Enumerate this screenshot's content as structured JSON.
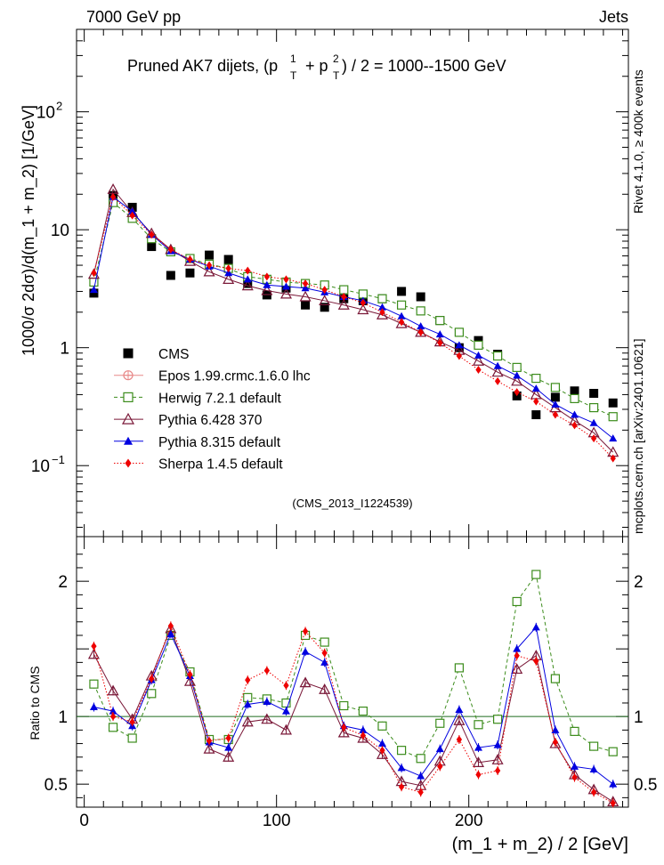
{
  "header": {
    "left": "7000 GeV pp",
    "right": "Jets",
    "title_main": "Pruned AK7 dijets, (p",
    "title_sup1": "1",
    "title_sub1": "T",
    "title_plus": "+ p",
    "title_sup2": "2",
    "title_sub2": "T",
    "title_rest": ") / 2 = 1000--1500 GeV"
  },
  "side": {
    "rivet": "Rivet 4.1.0, ≥ 400k events",
    "mcplots": "mcplots.cern.ch [arXiv:2401.10621]"
  },
  "analysis_id": "(CMS_2013_I1224539)",
  "chart_data": [
    {
      "type": "scatter",
      "role": "main",
      "ylabel": "1000/σ   2dσ)/d(m_1 + m_2) [1/GeV]",
      "yscale": "log",
      "ylim": [
        0.025,
        500
      ],
      "xlim": [
        -4,
        283
      ],
      "yticks": [
        {
          "value": 0.1,
          "label": "10",
          "exp": "−1"
        },
        {
          "value": 1,
          "label": "1",
          "exp": ""
        },
        {
          "value": 10,
          "label": "10",
          "exp": ""
        },
        {
          "value": 100,
          "label": "10",
          "exp": "2"
        }
      ],
      "legend_position": "bottom-left",
      "x": [
        5,
        15,
        25,
        35,
        45,
        55,
        65,
        75,
        85,
        95,
        105,
        115,
        125,
        135,
        145,
        155,
        165,
        175,
        185,
        195,
        205,
        215,
        225,
        235,
        245,
        255,
        265,
        275
      ],
      "series": [
        {
          "name": "CMS",
          "color": "#000000",
          "marker": "square-filled",
          "line": "none",
          "values": [
            2.9,
            19.5,
            15.5,
            7.2,
            4.1,
            4.3,
            6.1,
            5.6,
            3.5,
            2.8,
            3.2,
            2.3,
            2.2,
            2.6,
            2.5,
            2.6,
            3.0,
            2.7,
            1.7,
            1.0,
            1.15,
            0.88,
            0.39,
            0.27,
            0.38,
            0.43,
            0.41,
            0.34
          ]
        },
        {
          "name": "Epos 1.99.crmc.1.6.0 lhc",
          "color": "#e88888",
          "marker": "cross-circle",
          "line": "solid",
          "values": []
        },
        {
          "name": "Herwig 7.2.1 default",
          "color": "#3c8c1c",
          "marker": "square-open",
          "line": "dashed",
          "values": [
            3.6,
            17.0,
            12.5,
            8.4,
            6.5,
            5.7,
            5.1,
            4.7,
            4.0,
            3.8,
            3.6,
            3.5,
            3.4,
            3.1,
            2.85,
            2.6,
            2.3,
            2.05,
            1.7,
            1.35,
            1.05,
            0.85,
            0.68,
            0.55,
            0.46,
            0.37,
            0.31,
            0.26
          ]
        },
        {
          "name": "Pythia 6.428 370",
          "color": "#7a1838",
          "marker": "triangle-open",
          "line": "solid",
          "values": [
            4.2,
            22.0,
            14.0,
            9.3,
            6.8,
            5.4,
            4.4,
            3.8,
            3.35,
            3.05,
            2.85,
            2.7,
            2.5,
            2.3,
            2.1,
            1.9,
            1.6,
            1.35,
            1.12,
            0.95,
            0.77,
            0.62,
            0.52,
            0.4,
            0.31,
            0.24,
            0.19,
            0.13
          ]
        },
        {
          "name": "Pythia 8.315 default",
          "color": "#0000e0",
          "marker": "triangle-filled",
          "line": "solid",
          "values": [
            3.1,
            19.0,
            14.3,
            9.1,
            6.6,
            5.6,
            4.9,
            4.3,
            3.8,
            3.4,
            3.3,
            3.2,
            2.95,
            2.7,
            2.5,
            2.2,
            1.85,
            1.52,
            1.3,
            1.05,
            0.86,
            0.7,
            0.58,
            0.45,
            0.33,
            0.27,
            0.23,
            0.17
          ]
        },
        {
          "name": "Sherpa 1.4.5 default",
          "color": "#ee0000",
          "marker": "diamond-filled",
          "line": "dotted",
          "values": [
            4.3,
            19.0,
            13.2,
            9.1,
            6.8,
            5.6,
            5.0,
            4.7,
            4.5,
            4.0,
            3.8,
            3.5,
            3.1,
            2.7,
            2.4,
            2.0,
            1.65,
            1.35,
            1.1,
            0.85,
            0.65,
            0.52,
            0.42,
            0.35,
            0.27,
            0.22,
            0.17,
            0.115
          ]
        }
      ]
    },
    {
      "type": "line",
      "role": "ratio",
      "ylabel": "Ratio to CMS",
      "xlabel": "(m_1 + m_2) / 2 [GeV]",
      "ylim": [
        0.33,
        2.33
      ],
      "xlim": [
        -4,
        283
      ],
      "yticks": [
        0.5,
        1,
        2
      ],
      "ytick_labels": [
        "0.5",
        "1",
        "2"
      ],
      "xticks": [
        0,
        100,
        200
      ],
      "xtick_labels": [
        "0",
        "100",
        "200"
      ],
      "reference_line": 1,
      "x": [
        5,
        15,
        25,
        35,
        45,
        55,
        65,
        75,
        85,
        95,
        105,
        115,
        125,
        135,
        145,
        155,
        165,
        175,
        185,
        195,
        205,
        215,
        225,
        235,
        245,
        255,
        265,
        275
      ],
      "series": [
        {
          "name": "Herwig 7.2.1 default",
          "color": "#3c8c1c",
          "marker": "square-open",
          "line": "dashed",
          "values": [
            1.24,
            0.92,
            0.84,
            1.17,
            1.6,
            1.33,
            0.83,
            0.83,
            1.14,
            1.13,
            1.1,
            1.6,
            1.55,
            1.08,
            1.04,
            0.93,
            0.75,
            0.69,
            0.95,
            1.36,
            0.94,
            0.98,
            1.85,
            2.05,
            1.28,
            0.89,
            0.78,
            0.74
          ]
        },
        {
          "name": "Pythia 6.428 370",
          "color": "#7a1838",
          "marker": "triangle-open",
          "line": "solid",
          "values": [
            1.46,
            1.19,
            0.98,
            1.3,
            1.65,
            1.26,
            0.76,
            0.7,
            0.96,
            0.98,
            0.9,
            1.25,
            1.2,
            0.88,
            0.84,
            0.72,
            0.52,
            0.49,
            0.67,
            0.97,
            0.66,
            0.68,
            1.35,
            1.45,
            0.8,
            0.57,
            0.46,
            0.37
          ]
        },
        {
          "name": "Pythia 8.315 default",
          "color": "#0000e0",
          "marker": "triangle-filled",
          "line": "solid",
          "values": [
            1.07,
            1.04,
            0.93,
            1.27,
            1.61,
            1.3,
            0.81,
            0.77,
            1.09,
            1.11,
            1.04,
            1.48,
            1.4,
            0.93,
            0.9,
            0.8,
            0.62,
            0.56,
            0.76,
            1.05,
            0.77,
            0.79,
            1.5,
            1.66,
            0.9,
            0.63,
            0.61,
            0.5
          ]
        },
        {
          "name": "Sherpa 1.4.5 default",
          "color": "#ee0000",
          "marker": "diamond-filled",
          "line": "dotted",
          "values": [
            1.52,
            1.0,
            0.96,
            1.28,
            1.67,
            1.31,
            0.82,
            0.84,
            1.27,
            1.34,
            1.23,
            1.63,
            1.47,
            0.92,
            0.86,
            0.75,
            0.48,
            0.44,
            0.63,
            0.83,
            0.57,
            0.6,
            1.45,
            1.41,
            0.81,
            0.55,
            0.44,
            0.36
          ]
        }
      ]
    }
  ]
}
